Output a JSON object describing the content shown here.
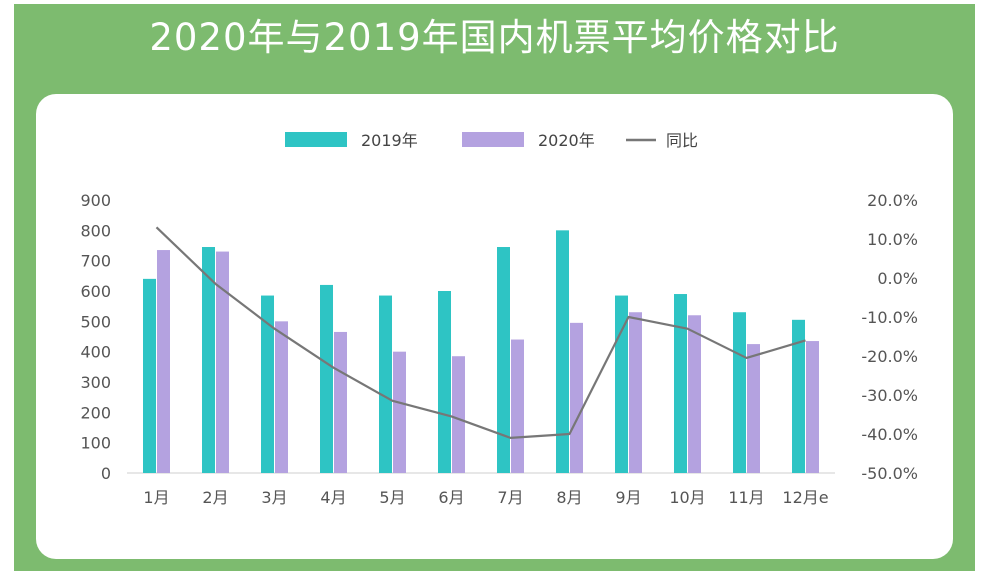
{
  "title": "2020年与2019年国内机票平均价格对比",
  "colors": {
    "frame": "#7dbb6f",
    "series_2019": "#2ec4c4",
    "series_2020": "#b4a2e0",
    "line": "#777777"
  },
  "chart_data": {
    "type": "bar",
    "categories": [
      "1月",
      "2月",
      "3月",
      "4月",
      "5月",
      "6月",
      "7月",
      "8月",
      "9月",
      "10月",
      "11月",
      "12月e"
    ],
    "series": [
      {
        "name": "2019年",
        "type": "bar",
        "axis": "left",
        "values": [
          640,
          745,
          585,
          620,
          585,
          600,
          745,
          800,
          585,
          590,
          530,
          505
        ]
      },
      {
        "name": "2020年",
        "type": "bar",
        "axis": "left",
        "values": [
          735,
          730,
          500,
          465,
          400,
          385,
          440,
          495,
          530,
          520,
          425,
          435
        ]
      },
      {
        "name": "同比",
        "type": "line",
        "axis": "right",
        "values": [
          13.0,
          -1.5,
          -13.0,
          -23.0,
          -31.5,
          -35.5,
          -41.0,
          -40.0,
          -10.0,
          -13.0,
          -20.5,
          -16.0
        ]
      }
    ],
    "y_left": {
      "min": 0,
      "max": 900,
      "step": 100,
      "ticks": [
        "0",
        "100",
        "200",
        "300",
        "400",
        "500",
        "600",
        "700",
        "800",
        "900"
      ]
    },
    "y_right": {
      "min": -50,
      "max": 20,
      "step": 10,
      "ticks": [
        "-50.0%",
        "-40.0%",
        "-30.0%",
        "-20.0%",
        "-10.0%",
        "0.0%",
        "10.0%",
        "20.0%"
      ]
    },
    "legend_position": "top-center",
    "grid": false
  }
}
